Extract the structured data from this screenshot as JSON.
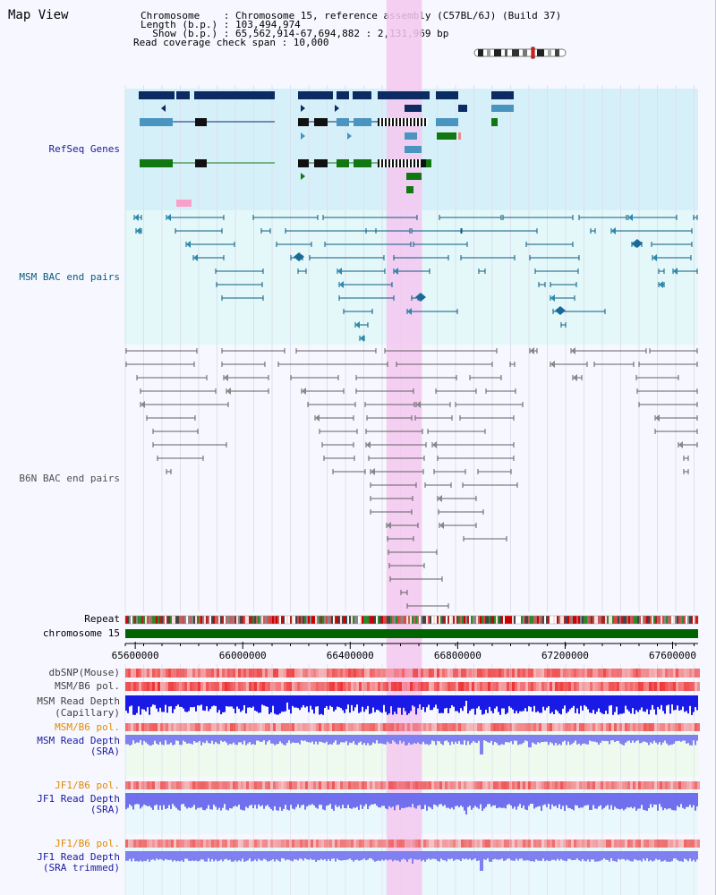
{
  "app": {
    "title": "Map View"
  },
  "info": {
    "line1": "Chromosome    : Chromosome 15, reference assembly (C57BL/6J) (Build 37)",
    "line2": "Length (b.p.) : 103,494,974",
    "line3": "  Show (b.p.) : 65,562,914-67,694,882 : 2,131,969 bp",
    "line4": "Read coverage check span : 10,000"
  },
  "tracks": {
    "refseq": "RefSeq Genes",
    "msm_bac": "MSM BAC end pairs",
    "b6n_bac": "B6N BAC end pairs",
    "repeat": "Repeat",
    "chromosome": "chromosome 15",
    "dbsnp": "dbSNP(Mouse)",
    "msm_pol": "MSM/B6 pol.",
    "msm_depth_cap_1": "MSM Read Depth",
    "msm_depth_cap_2": "(Capillary)",
    "msm_pol2": "MSM/B6 pol.",
    "msm_depth_sra_1": "MSM Read Depth",
    "msm_depth_sra_2": "(SRA)",
    "jf1_pol": "JF1/B6 pol.",
    "jf1_depth_sra_1": "JF1 Read Depth",
    "jf1_depth_sra_2": "(SRA)",
    "jf1_pol2": "JF1/B6 pol.",
    "jf1_depth_trim_1": "JF1 Read Depth",
    "jf1_depth_trim_2": "(SRA trimmed)"
  },
  "axis": {
    "ticks": [
      "65600000",
      "66000000",
      "66400000",
      "66800000",
      "67200000",
      "67600000"
    ],
    "positions": [
      65600000,
      66000000,
      66400000,
      66800000,
      67200000,
      67600000
    ],
    "view_start": 65562914,
    "view_end": 67694882
  },
  "highlight": {
    "color": "#f4c8f0",
    "start": 66535000,
    "end": 66667000
  },
  "colors": {
    "refseq_bg": "#d6f0fa",
    "msm_bg": "#e4f8fa",
    "navy": "#0b2b62",
    "steel": "#4a94c0",
    "green": "#117711",
    "msm_line": "#0a5a80",
    "b6n_line": "#606060",
    "dbsnp": "#f08080",
    "depth_blue": "#1a1ae6",
    "depth_light": "#8080f0",
    "chrom": "#006400",
    "label_blue": "#1a1aa0",
    "label_orange": "#e08a00",
    "label_gray": "#404040"
  }
}
